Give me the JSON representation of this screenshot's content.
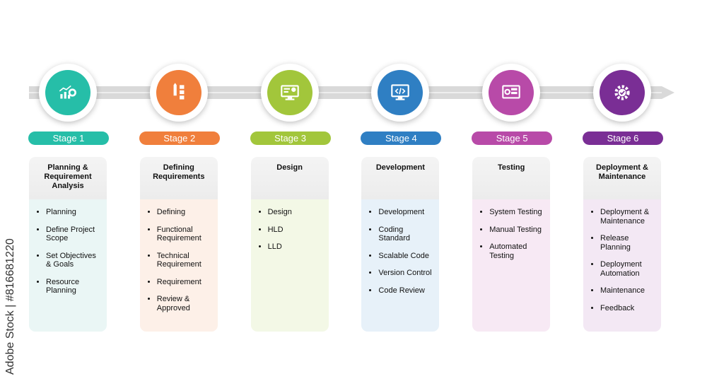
{
  "stages": [
    {
      "label": "Stage 1",
      "title": "Planning & Requirement Analysis",
      "icon": "chart-gear-icon",
      "color": "#26bea8",
      "tint": "#eaf6f5",
      "items": [
        "Planning",
        "Define Project Scope",
        "Set Objectives & Goals",
        "Resource Planning"
      ]
    },
    {
      "label": "Stage 2",
      "title": "Defining Requirements",
      "icon": "pencil-checklist-icon",
      "color": "#f07f3c",
      "tint": "#fdf0e8",
      "items": [
        "Defining",
        "Functional Requirement",
        "Technical Requirement",
        "Requirement",
        "Review & Approved"
      ]
    },
    {
      "label": "Stage 3",
      "title": "Design",
      "icon": "design-monitor-icon",
      "color": "#a2c63b",
      "tint": "#f3f8e6",
      "items": [
        "Design",
        "HLD",
        "LLD"
      ]
    },
    {
      "label": "Stage 4",
      "title": "Development",
      "icon": "code-monitor-icon",
      "color": "#2f7fc3",
      "tint": "#e7f1f9",
      "items": [
        "Development",
        "Coding Standard",
        "Scalable Code",
        "Version Control",
        "Code Review"
      ]
    },
    {
      "label": "Stage 5",
      "title": "Testing",
      "icon": "testing-screen-icon",
      "color": "#b84aa8",
      "tint": "#f7e9f4",
      "items": [
        "System Testing",
        "Manual Testing",
        "Automated Testing"
      ]
    },
    {
      "label": "Stage 6",
      "title": "Deployment & Maintenance",
      "icon": "gear-check-icon",
      "color": "#7a2e95",
      "tint": "#f3e8f4",
      "items": [
        "Deployment & Maintenance",
        "Release Planning",
        "Deployment Automation",
        "Maintenance",
        "Feedback"
      ]
    }
  ],
  "watermark": "Adobe Stock | #816681220"
}
